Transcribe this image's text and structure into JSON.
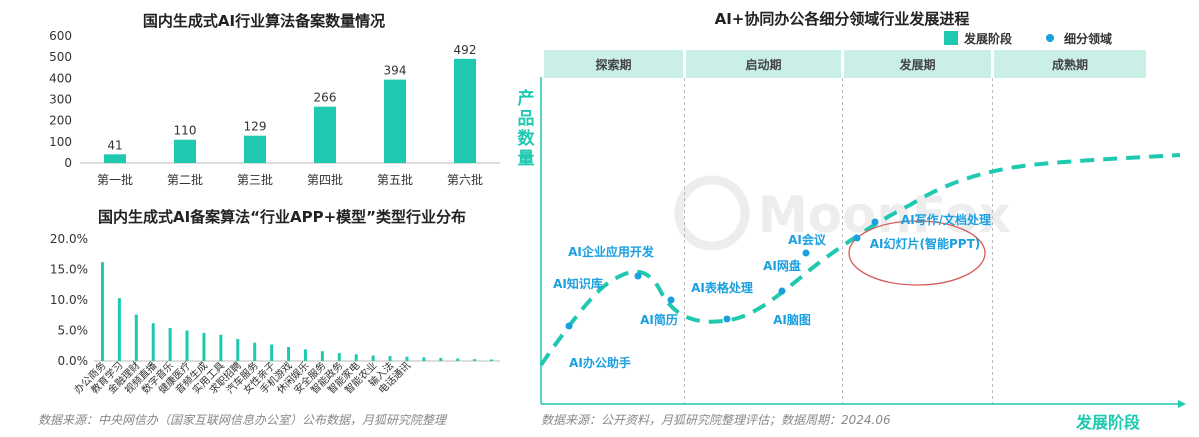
{
  "colors": {
    "teal": "#1fc9b0",
    "teal_dark": "#17b59c",
    "blue": "#1a9fe0",
    "text": "#333333",
    "grey": "#888888",
    "phase_bg": "#c9efe7",
    "ellipse": "#d85a5a"
  },
  "chart_data": [
    {
      "type": "bar",
      "title": "国内生成式AI行业算法备案数量情况",
      "categories": [
        "第一批",
        "第二批",
        "第三批",
        "第四批",
        "第五批",
        "第六批"
      ],
      "values": [
        41,
        110,
        129,
        266,
        394,
        492
      ],
      "ylim": [
        0,
        600
      ],
      "yticks": [
        "0",
        "100",
        "200",
        "300",
        "400",
        "500",
        "600"
      ],
      "grid": false
    },
    {
      "type": "bar",
      "title": "国内生成式AI备案算法“行业APP+模型”类型行业分布",
      "categories": [
        "办公商务",
        "教育学习",
        "金融理财",
        "视频直播",
        "数字音乐",
        "健康医疗",
        "音频生成",
        "实用工具",
        "求职招聘",
        "汽车服务",
        "女性亲子",
        "手机游戏",
        "休闲娱乐",
        "安全服务",
        "智能政务",
        "智能家电",
        "智能农业",
        "输入法",
        "电话通讯",
        "",
        "",
        "",
        "",
        ""
      ],
      "values": [
        16.2,
        10.3,
        7.6,
        6.2,
        5.4,
        5.0,
        4.6,
        4.3,
        3.6,
        3.0,
        2.7,
        2.3,
        1.9,
        1.6,
        1.3,
        1.1,
        0.9,
        0.8,
        0.7,
        0.6,
        0.5,
        0.4,
        0.3,
        0.25
      ],
      "ylim": [
        0,
        20
      ],
      "yticks": [
        "0.0%",
        "5.0%",
        "10.0%",
        "15.0%",
        "20.0%"
      ],
      "grid": false
    },
    {
      "type": "line",
      "title": "AI+协同办公各细分领域行业发展进程",
      "ylabel": "产品数量",
      "xlabel": "发展阶段",
      "legend": [
        "发展阶段",
        "细分领域"
      ],
      "phases": [
        "探索期",
        "启动期",
        "发展期",
        "成熟期"
      ],
      "points": [
        "AI办公助手",
        "AI知识库",
        "AI企业应用开发",
        "AI简历",
        "AI表格处理",
        "AI脑图",
        "AI网盘",
        "AI会议",
        "AI幻灯片(智能PPT)",
        "AI写作/文档处理"
      ]
    }
  ],
  "sources": {
    "left": "数据来源：中央网信办（国家互联网信息办公室）公布数据，月狐研究院整理",
    "right": "数据来源：公开资料，月狐研究院整理评估；数据周期：2024.06"
  },
  "watermark": "MoonFox"
}
